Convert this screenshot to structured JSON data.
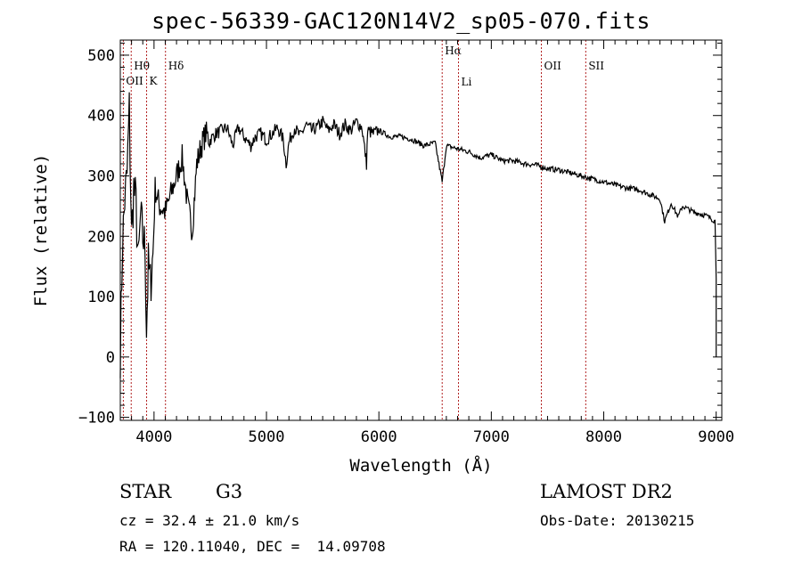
{
  "chart_data": {
    "type": "line",
    "title": "spec-56339-GAC120N14V2_sp05-070.fits",
    "xlabel": "Wavelength (Å)",
    "ylabel": "Flux (relative)",
    "xlim": [
      3700,
      9050
    ],
    "ylim": [
      -105,
      525
    ],
    "x_ticks": [
      "4000",
      "5000",
      "6000",
      "7000",
      "8000",
      "9000"
    ],
    "y_ticks": [
      "−100",
      "0",
      "100",
      "200",
      "300",
      "400",
      "500"
    ],
    "x_tick_values": [
      4000,
      5000,
      6000,
      7000,
      8000,
      9000
    ],
    "y_tick_values": [
      -100,
      0,
      100,
      200,
      300,
      400,
      500
    ],
    "grid": false,
    "series": [
      {
        "x": [
          3700,
          3720,
          3740,
          3760,
          3780,
          3800,
          3820,
          3840,
          3860,
          3880,
          3900,
          3920,
          3933,
          3950,
          3968,
          3990,
          4010,
          4050,
          4101,
          4150,
          4200,
          4250,
          4300,
          4340,
          4380,
          4420,
          4460,
          4500,
          4550,
          4600,
          4650,
          4700,
          4750,
          4800,
          4861,
          4900,
          4950,
          5000,
          5050,
          5100,
          5150,
          5175,
          5200,
          5250,
          5300,
          5350,
          5400,
          5450,
          5500,
          5550,
          5600,
          5650,
          5700,
          5750,
          5800,
          5850,
          5890,
          5900,
          5950,
          6000,
          6100,
          6200,
          6300,
          6400,
          6500,
          6563,
          6600,
          6700,
          6800,
          6900,
          7000,
          7100,
          7200,
          7300,
          7400,
          7500,
          7600,
          7700,
          7800,
          7900,
          8000,
          8100,
          8200,
          8300,
          8400,
          8500,
          8542,
          8600,
          8662,
          8700,
          8800,
          8900,
          8950,
          8990,
          9000
        ],
        "y": [
          10,
          190,
          260,
          300,
          410,
          200,
          280,
          250,
          150,
          230,
          200,
          180,
          50,
          150,
          120,
          170,
          280,
          250,
          240,
          270,
          300,
          330,
          250,
          210,
          320,
          350,
          370,
          360,
          370,
          375,
          380,
          350,
          380,
          365,
          350,
          365,
          370,
          360,
          370,
          380,
          360,
          320,
          355,
          380,
          365,
          385,
          375,
          380,
          390,
          375,
          385,
          370,
          385,
          375,
          390,
          380,
          320,
          375,
          370,
          375,
          365,
          365,
          360,
          350,
          355,
          290,
          350,
          345,
          340,
          330,
          335,
          325,
          325,
          320,
          318,
          312,
          310,
          305,
          300,
          295,
          290,
          285,
          280,
          278,
          270,
          262,
          225,
          255,
          232,
          250,
          240,
          235,
          230,
          225,
          130
        ]
      }
    ],
    "line_markers": [
      {
        "label": "OII",
        "wavelength": 3727
      },
      {
        "label": "Hθ",
        "wavelength": 3797
      },
      {
        "label": "K",
        "wavelength": 3934
      },
      {
        "label": "Hδ",
        "wavelength": 4102
      },
      {
        "label": "Hα",
        "wavelength": 6563
      },
      {
        "label": "Li",
        "wavelength": 6708
      },
      {
        "label": "OII",
        "wavelength": 7445
      },
      {
        "label": "SII",
        "wavelength": 7840
      }
    ],
    "colors": {
      "spectrum": "#000000",
      "markers": "#b22222",
      "axes": "#000000"
    }
  },
  "info": {
    "class": "STAR",
    "subclass": "G3",
    "cz": "cz = 32.4 ± 21.0 km/s",
    "radec": "RA = 120.11040, DEC =  14.09708",
    "survey": "LAMOST DR2",
    "obs_date": "Obs-Date: 20130215"
  }
}
